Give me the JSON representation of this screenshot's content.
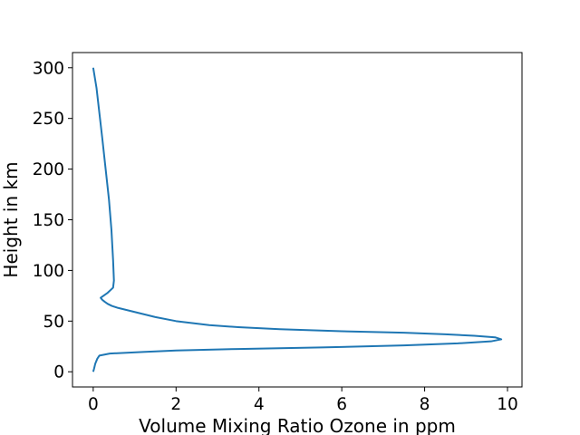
{
  "chart_data": {
    "type": "line",
    "title": "",
    "xlabel": "Volume Mixing Ratio Ozone in ppm",
    "ylabel": "Height in km",
    "xlim": [
      -0.5,
      10.35
    ],
    "ylim": [
      -15,
      315
    ],
    "x_ticks": [
      0,
      2,
      4,
      6,
      8,
      10
    ],
    "y_ticks": [
      0,
      50,
      100,
      150,
      200,
      250,
      300
    ],
    "grid": false,
    "legend": "none",
    "series_color": "#1f77b4",
    "series": [
      {
        "x": [
          0.0,
          0.02,
          0.05,
          0.1,
          0.15,
          0.4,
          1.2,
          2.0,
          3.5,
          5.5,
          7.5,
          8.8,
          9.6,
          9.85,
          9.7,
          9.2,
          8.5,
          7.5,
          6.0,
          4.5,
          3.5,
          2.8,
          2.0,
          1.5,
          1.1,
          0.8,
          0.6,
          0.45,
          0.35,
          0.28,
          0.22,
          0.18,
          0.35,
          0.48,
          0.5,
          0.48,
          0.44,
          0.38,
          0.3,
          0.22,
          0.15,
          0.08,
          0.0
        ],
        "y": [
          0,
          3,
          8,
          13,
          16,
          18,
          19.5,
          21,
          22.5,
          24,
          26,
          28,
          30,
          32,
          34,
          35.5,
          37,
          38.5,
          40,
          42,
          44,
          46,
          50,
          54,
          58,
          61,
          63,
          65,
          67,
          69,
          71,
          73,
          78,
          83,
          90,
          110,
          140,
          170,
          200,
          230,
          255,
          280,
          300
        ]
      }
    ]
  }
}
